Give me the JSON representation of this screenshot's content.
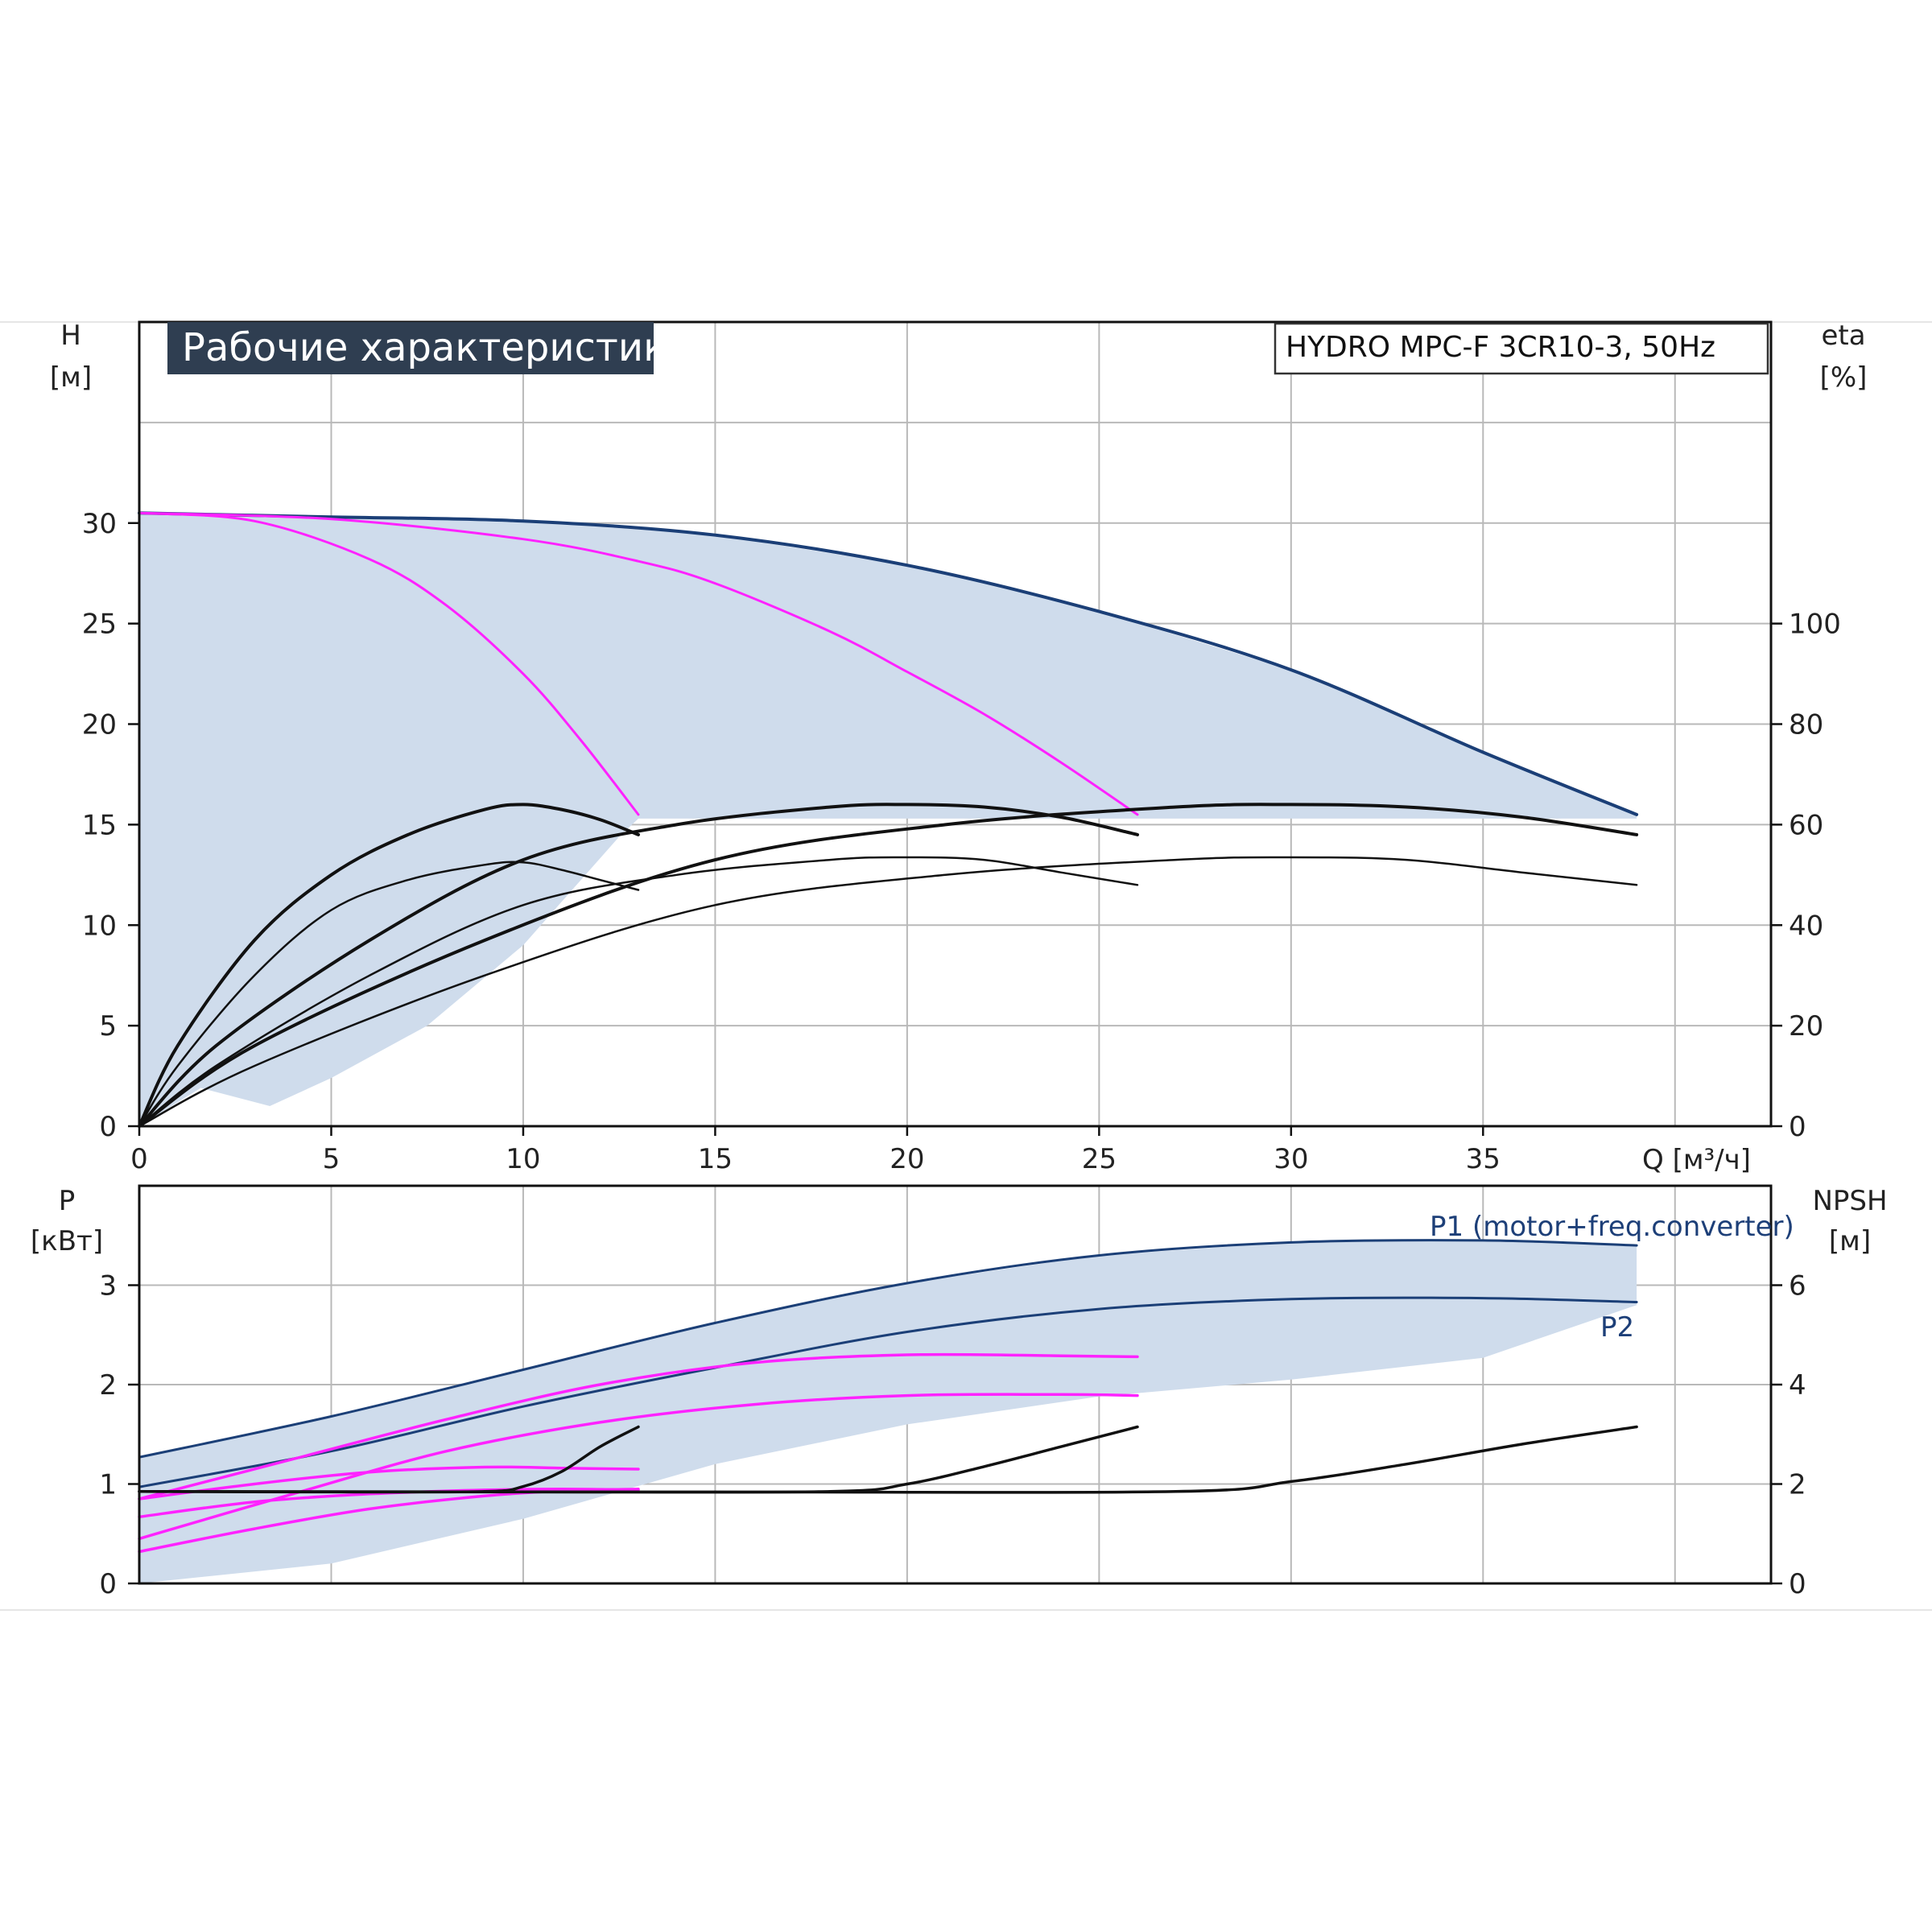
{
  "chart_data": [
    {
      "type": "line",
      "title": "Рабочие характеристики",
      "model": "HYDRO MPC-F 3CR10-3, 50Hz",
      "xlabel": "Q [м³/ч]",
      "xticks": [
        0,
        5,
        10,
        15,
        20,
        25,
        30,
        35
      ],
      "xlim": [
        0,
        42.5
      ],
      "ylabel_name": "H",
      "ylabel_unit": "[м]",
      "yticks": [
        0,
        5,
        10,
        15,
        20,
        25,
        30
      ],
      "ylim": [
        0,
        40
      ],
      "y2label_name": "eta",
      "y2label_unit": "[%]",
      "y2ticks": [
        0,
        20,
        40,
        60,
        80,
        100
      ],
      "y2lim": [
        0,
        160
      ],
      "grid": true,
      "colors": {
        "fill": "#cfdcec",
        "max_curve": "#1b3f77",
        "reduced": "#ff22ff",
        "eff": "#111111"
      },
      "operating_area": {
        "q": [
          0,
          0,
          1.6,
          3.4,
          5,
          7.5,
          10,
          12.5,
          13,
          39,
          39,
          35,
          30,
          25,
          20,
          15,
          10,
          5,
          0
        ],
        "h": [
          30.5,
          0,
          1.9,
          1,
          2.4,
          5,
          9,
          14.4,
          15.3,
          15.3,
          15.5,
          18.6,
          22.7,
          25.6,
          27.9,
          29.4,
          30.1,
          30.3,
          30.5
        ]
      },
      "series": [
        {
          "role": "max_head",
          "x": [
            0,
            5,
            10,
            15,
            20,
            25,
            30,
            35,
            39
          ],
          "y": [
            30.5,
            30.3,
            30.1,
            29.4,
            27.9,
            25.6,
            22.7,
            18.6,
            15.5
          ]
        },
        {
          "role": "reduced_head",
          "x": [
            0,
            3,
            6,
            8,
            10,
            11.5,
            13
          ],
          "y": [
            30.5,
            30.1,
            28.2,
            25.9,
            22.5,
            19.2,
            15.5
          ]
        },
        {
          "role": "reduced_head",
          "x": [
            0,
            5,
            10,
            13,
            15,
            18,
            20,
            22,
            24,
            26
          ],
          "y": [
            30.5,
            30.2,
            29.2,
            28.1,
            27,
            24.6,
            22.6,
            20.5,
            18.1,
            15.5
          ]
        },
        {
          "role": "efficiency",
          "axis": "y2",
          "x": [
            0,
            1,
            3,
            5,
            7,
            9,
            10,
            11,
            12,
            13
          ],
          "y": [
            0,
            16,
            37,
            50,
            58,
            63,
            64,
            63,
            61,
            58
          ]
        },
        {
          "role": "efficiency",
          "axis": "y2",
          "x": [
            0,
            1,
            3,
            5,
            7,
            9,
            10,
            11,
            12,
            13
          ],
          "y": [
            0,
            12,
            30,
            43,
            49,
            52,
            52.5,
            51,
            49,
            47
          ]
        },
        {
          "role": "efficiency",
          "axis": "y2",
          "x": [
            0,
            2,
            6,
            10,
            14,
            18,
            20,
            22,
            24,
            26
          ],
          "y": [
            0,
            16,
            37,
            53,
            60,
            63.5,
            64,
            63.5,
            61.5,
            58
          ]
        },
        {
          "role": "efficiency",
          "axis": "y2",
          "x": [
            0,
            2,
            6,
            10,
            14,
            18,
            20,
            22,
            24,
            26
          ],
          "y": [
            0,
            12,
            30,
            44,
            50,
            53,
            53.5,
            53,
            50.5,
            48
          ]
        },
        {
          "role": "efficiency",
          "axis": "y2",
          "x": [
            0,
            3,
            9,
            15,
            21,
            27,
            30,
            33,
            36,
            39
          ],
          "y": [
            0,
            16,
            37,
            53,
            60,
            63.5,
            64,
            63.5,
            61.5,
            58
          ]
        },
        {
          "role": "efficiency",
          "axis": "y2",
          "x": [
            0,
            3,
            9,
            15,
            21,
            27,
            30,
            33,
            36,
            39
          ],
          "y": [
            0,
            12,
            30,
            44,
            50,
            53,
            53.5,
            53,
            50.5,
            48
          ]
        }
      ]
    },
    {
      "type": "line",
      "xlim": [
        0,
        42.5
      ],
      "ylabel_name": "P",
      "ylabel_unit": "[кВт]",
      "yticks": [
        0,
        1,
        2,
        3
      ],
      "ylim": [
        0,
        4
      ],
      "y2label_name": "NPSH",
      "y2label_unit": "[м]",
      "y2ticks": [
        0,
        2,
        4,
        6
      ],
      "y2lim": [
        0,
        8
      ],
      "grid": true,
      "labels": {
        "p1": "P1 (motor+freq.converter)",
        "p2": "P2"
      },
      "operating_area": {
        "q": [
          0,
          5,
          10,
          15,
          20,
          25,
          30,
          35,
          39,
          39,
          35,
          30,
          25,
          20,
          15,
          10,
          5,
          0
        ],
        "p": [
          1.27,
          1.68,
          2.15,
          2.62,
          3.02,
          3.3,
          3.43,
          3.45,
          3.4,
          2.8,
          2.27,
          2.05,
          1.88,
          1.6,
          1.2,
          0.65,
          0.2,
          0
        ]
      },
      "series": [
        {
          "name": "P1 (motor+freq.converter)",
          "role": "max_power",
          "x": [
            0,
            5,
            10,
            15,
            20,
            25,
            30,
            35,
            39
          ],
          "y": [
            1.27,
            1.68,
            2.15,
            2.62,
            3.02,
            3.3,
            3.43,
            3.45,
            3.4
          ]
        },
        {
          "name": "P2",
          "role": "max_power",
          "x": [
            0,
            5,
            10,
            15,
            20,
            25,
            30,
            35,
            39
          ],
          "y": [
            0.97,
            1.33,
            1.78,
            2.17,
            2.53,
            2.76,
            2.86,
            2.87,
            2.83
          ]
        },
        {
          "role": "reduced_power",
          "x": [
            0,
            3,
            6,
            9,
            11,
            13
          ],
          "y": [
            0.85,
            1.0,
            1.12,
            1.17,
            1.16,
            1.15
          ]
        },
        {
          "role": "reduced_power",
          "x": [
            0,
            3,
            6,
            9,
            11,
            13
          ],
          "y": [
            0.67,
            0.82,
            0.9,
            0.94,
            0.95,
            0.94
          ]
        },
        {
          "role": "reduced_power",
          "x": [
            0,
            4,
            8,
            12,
            16,
            20,
            24,
            26
          ],
          "y": [
            0.85,
            1.25,
            1.65,
            2.0,
            2.22,
            2.3,
            2.29,
            2.28
          ]
        },
        {
          "role": "reduced_power",
          "x": [
            0,
            4,
            8,
            12,
            16,
            20,
            24,
            26
          ],
          "y": [
            0.45,
            0.9,
            1.33,
            1.62,
            1.8,
            1.89,
            1.9,
            1.89
          ]
        },
        {
          "role": "reduced_power",
          "x": [
            0,
            3,
            6,
            9,
            11,
            13
          ],
          "y": [
            0.32,
            0.55,
            0.75,
            0.88,
            0.93,
            0.95
          ]
        },
        {
          "role": "npsh",
          "axis": "y2",
          "x": [
            0,
            5,
            9,
            10,
            11,
            12,
            13
          ],
          "y": [
            1.85,
            1.84,
            1.85,
            1.95,
            2.25,
            2.75,
            3.15
          ]
        },
        {
          "role": "npsh",
          "axis": "y2",
          "x": [
            0,
            10,
            18,
            20,
            22,
            24,
            26
          ],
          "y": [
            1.85,
            1.84,
            1.85,
            2.0,
            2.35,
            2.75,
            3.15
          ]
        },
        {
          "role": "npsh",
          "axis": "y2",
          "x": [
            0,
            15,
            27,
            30,
            33,
            36,
            39
          ],
          "y": [
            1.85,
            1.84,
            1.85,
            2.05,
            2.4,
            2.8,
            3.15
          ]
        }
      ]
    }
  ]
}
